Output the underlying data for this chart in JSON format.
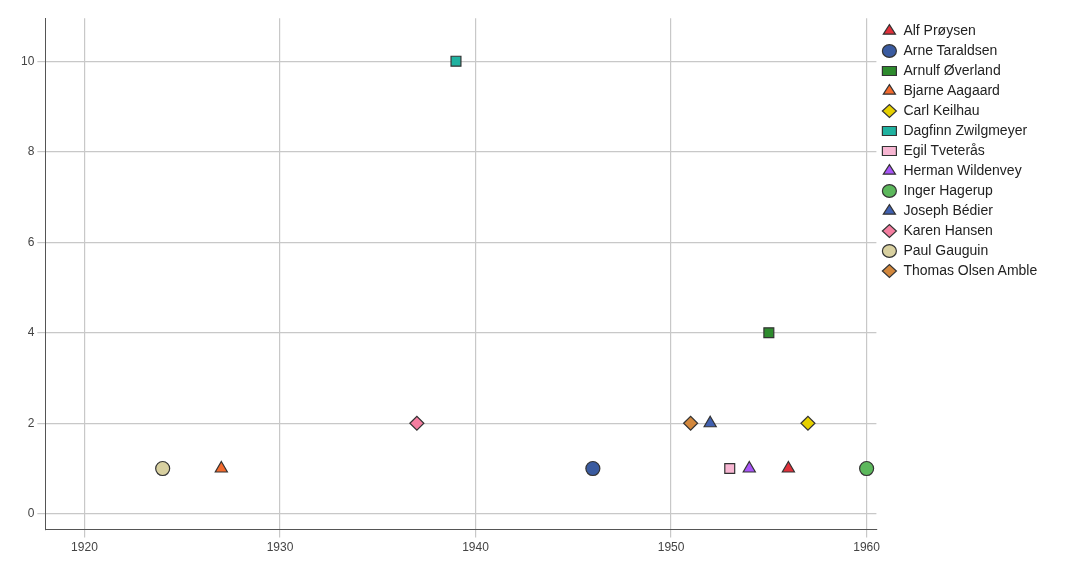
{
  "chart_data": {
    "type": "scatter",
    "xlim": [
      1918,
      1960.5
    ],
    "xticks": [
      1920,
      1930,
      1940,
      1950,
      1960
    ],
    "ylim": [
      -0.35,
      10.95
    ],
    "yticks": [
      0,
      2,
      4,
      6,
      8,
      10
    ],
    "grid": true,
    "legend": "right",
    "series": [
      {
        "name": "Alf Prøysen",
        "color": "#e0303a",
        "marker": "triangle",
        "x": [
          1956
        ],
        "values": [
          1
        ]
      },
      {
        "name": "Arne Taraldsen",
        "color": "#3a5ba0",
        "marker": "circle",
        "x": [
          1946
        ],
        "values": [
          1
        ]
      },
      {
        "name": "Arnulf Øverland",
        "color": "#2e8b2e",
        "marker": "square",
        "x": [
          1955
        ],
        "values": [
          4
        ]
      },
      {
        "name": "Bjarne Aagaard",
        "color": "#f26a2e",
        "marker": "triangle",
        "x": [
          1927
        ],
        "values": [
          1
        ]
      },
      {
        "name": "Carl Keilhau",
        "color": "#e6d000",
        "marker": "diamond",
        "x": [
          1957
        ],
        "values": [
          2
        ]
      },
      {
        "name": "Dagfinn Zwilgmeyer",
        "color": "#20b2a0",
        "marker": "square",
        "x": [
          1939
        ],
        "values": [
          10
        ]
      },
      {
        "name": "Egil Tveterås",
        "color": "#f7b6d2",
        "marker": "square",
        "x": [
          1953
        ],
        "values": [
          1
        ]
      },
      {
        "name": "Herman Wildenvey",
        "color": "#a855f7",
        "marker": "triangle",
        "x": [
          1954
        ],
        "values": [
          1
        ]
      },
      {
        "name": "Inger Hagerup",
        "color": "#5cb85c",
        "marker": "circle",
        "x": [
          1960
        ],
        "values": [
          1
        ]
      },
      {
        "name": "Joseph Bédier",
        "color": "#4060b0",
        "marker": "triangle",
        "x": [
          1952
        ],
        "values": [
          2
        ]
      },
      {
        "name": "Karen Hansen",
        "color": "#f47ea0",
        "marker": "diamond",
        "x": [
          1937
        ],
        "values": [
          2
        ]
      },
      {
        "name": "Paul Gauguin",
        "color": "#d8d0a0",
        "marker": "circle",
        "x": [
          1924
        ],
        "values": [
          1
        ]
      },
      {
        "name": "Thomas Olsen Amble",
        "color": "#d2873c",
        "marker": "diamond",
        "x": [
          1951
        ],
        "values": [
          2
        ]
      }
    ]
  }
}
